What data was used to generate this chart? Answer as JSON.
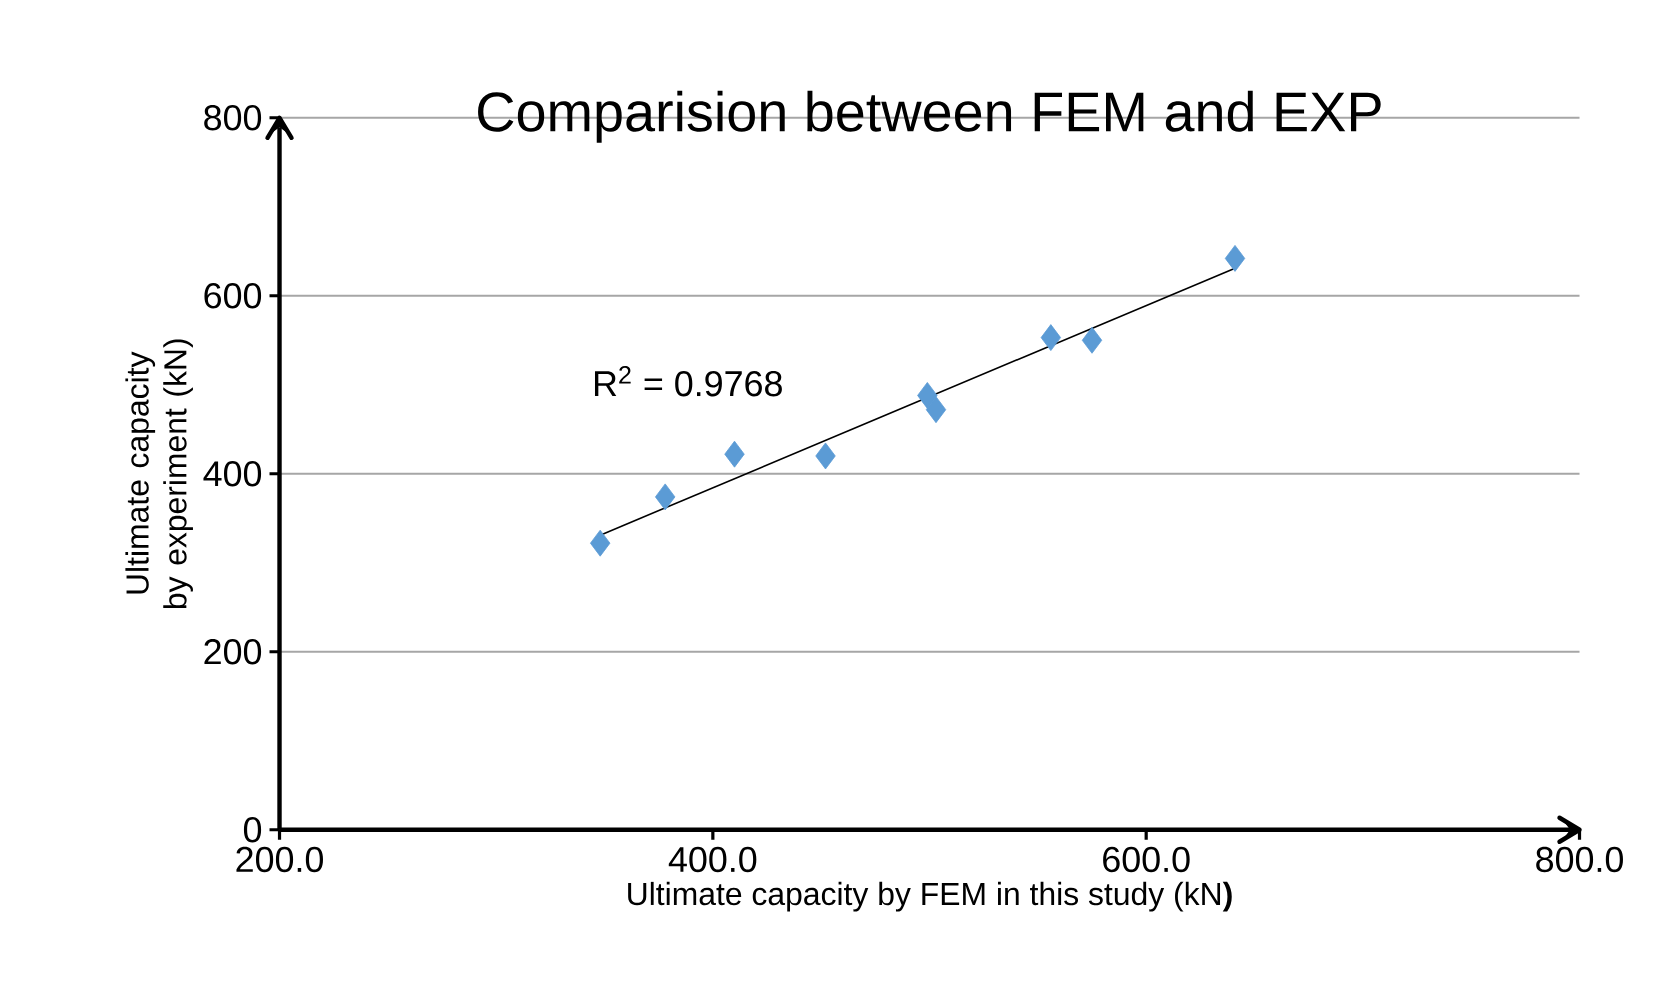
{
  "chart_data": {
    "type": "scatter",
    "title": "Comparision between FEM and EXP",
    "xlabel": "Ultimate capacity by  FEM in this study (kN**)**",
    "ylabel": "Ultimate capacity by experiment (kN)",
    "series": [
      {
        "type": "scatter",
        "color": "#5b9bd5",
        "marker": "diamond",
        "x": [
          348,
          378,
          410,
          452,
          499,
          503,
          556,
          575,
          641
        ],
        "values": [
          322,
          374,
          422,
          420,
          488,
          472,
          553,
          550,
          642
        ]
      },
      {
        "type": "line",
        "color": "#000000",
        "marker": "none",
        "x": [
          348,
          641
        ],
        "values": [
          331,
          631
        ]
      }
    ],
    "annotations": [
      "R$^{2}$ = 0.9768"
    ],
    "xlim": [
      200,
      800
    ],
    "ylim": [
      0,
      800
    ],
    "xticks": [
      {
        "value": 200,
        "label": "200.0"
      },
      {
        "value": 400,
        "label": "400.0"
      },
      {
        "value": 600,
        "label": "600.0"
      },
      {
        "value": 800,
        "label": "800.0"
      }
    ],
    "yticks": [
      0,
      200,
      400,
      600,
      800
    ],
    "grid": "y"
  }
}
